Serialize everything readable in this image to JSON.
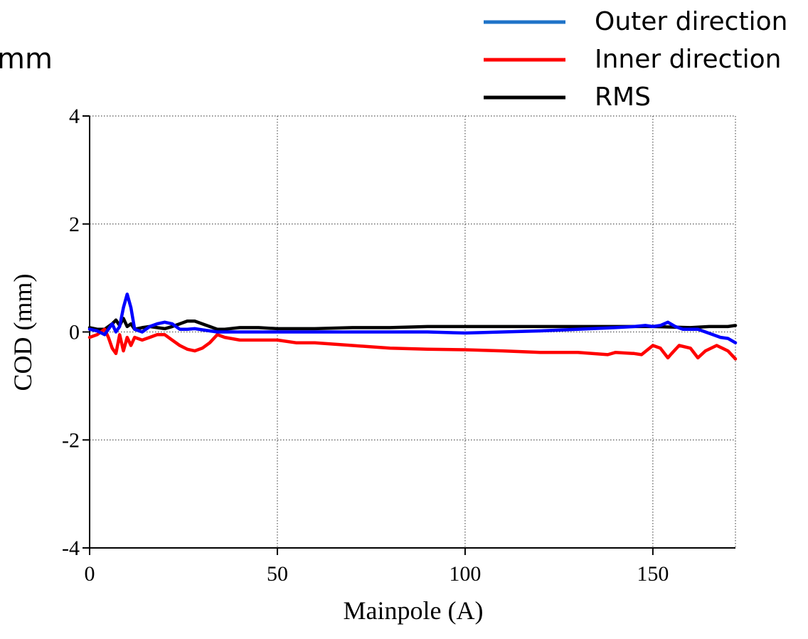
{
  "slide": {
    "partial_text": "mm"
  },
  "legend": {
    "placement": "top-right",
    "items": [
      {
        "label": "Outer direction",
        "color": "#1f73c8"
      },
      {
        "label": "Inner direction",
        "color": "#ff0000"
      },
      {
        "label": "RMS",
        "color": "#000000"
      }
    ]
  },
  "chart_data": {
    "type": "line",
    "title": "",
    "xlabel": "Mainpole (A)",
    "ylabel": "COD (mm)",
    "xlim": [
      0,
      172
    ],
    "ylim": [
      -4,
      4
    ],
    "xticks": [
      0,
      50,
      100,
      150
    ],
    "yticks": [
      4,
      2,
      0,
      -2,
      -4
    ],
    "xtick_labels": [
      "0",
      "50",
      "100",
      "150"
    ],
    "ytick_labels": [
      "4",
      "2",
      "0",
      "-2",
      "-4"
    ],
    "grid": "dotted",
    "series": [
      {
        "name": "Outer direction",
        "color": "#0000ff",
        "x": [
          0,
          2,
          4,
          6,
          7,
          8,
          9,
          10,
          11,
          12,
          14,
          16,
          18,
          20,
          22,
          24,
          26,
          28,
          30,
          32,
          34,
          36,
          40,
          45,
          50,
          55,
          60,
          70,
          80,
          90,
          100,
          110,
          120,
          130,
          140,
          145,
          148,
          150,
          152,
          154,
          156,
          158,
          160,
          162,
          164,
          166,
          168,
          170,
          172
        ],
        "y": [
          0.05,
          0.02,
          -0.05,
          0.15,
          0.0,
          0.1,
          0.45,
          0.7,
          0.45,
          0.05,
          0.0,
          0.1,
          0.15,
          0.18,
          0.15,
          0.05,
          0.05,
          0.06,
          0.04,
          0.02,
          0.0,
          0.0,
          0.0,
          0.0,
          0.0,
          0.0,
          0.0,
          0.0,
          0.0,
          0.0,
          -0.02,
          0.0,
          0.02,
          0.05,
          0.08,
          0.1,
          0.12,
          0.1,
          0.12,
          0.18,
          0.1,
          0.05,
          0.05,
          0.05,
          0.0,
          -0.05,
          -0.1,
          -0.12,
          -0.2
        ]
      },
      {
        "name": "Inner direction",
        "color": "#ff0000",
        "x": [
          0,
          2,
          4,
          5,
          6,
          7,
          8,
          9,
          10,
          11,
          12,
          14,
          16,
          18,
          20,
          22,
          24,
          26,
          28,
          30,
          32,
          34,
          36,
          40,
          45,
          50,
          55,
          60,
          70,
          80,
          90,
          100,
          110,
          120,
          130,
          138,
          140,
          145,
          147,
          150,
          152,
          154,
          155,
          157,
          160,
          162,
          164,
          167,
          170,
          172
        ],
        "y": [
          -0.1,
          -0.05,
          0.05,
          -0.1,
          -0.3,
          -0.4,
          -0.05,
          -0.35,
          -0.1,
          -0.25,
          -0.1,
          -0.15,
          -0.1,
          -0.05,
          -0.05,
          -0.15,
          -0.25,
          -0.32,
          -0.35,
          -0.3,
          -0.2,
          -0.05,
          -0.1,
          -0.15,
          -0.15,
          -0.15,
          -0.2,
          -0.2,
          -0.25,
          -0.3,
          -0.32,
          -0.33,
          -0.35,
          -0.38,
          -0.38,
          -0.42,
          -0.38,
          -0.4,
          -0.42,
          -0.25,
          -0.3,
          -0.48,
          -0.4,
          -0.25,
          -0.3,
          -0.48,
          -0.35,
          -0.25,
          -0.35,
          -0.5
        ]
      },
      {
        "name": "RMS",
        "color": "#000000",
        "x": [
          0,
          2,
          4,
          6,
          7,
          8,
          9,
          10,
          11,
          12,
          14,
          16,
          18,
          20,
          22,
          24,
          26,
          28,
          30,
          32,
          34,
          36,
          40,
          45,
          50,
          55,
          60,
          70,
          80,
          90,
          100,
          110,
          120,
          130,
          140,
          150,
          160,
          165,
          170,
          172
        ],
        "y": [
          0.08,
          0.05,
          0.05,
          0.15,
          0.22,
          0.12,
          0.25,
          0.1,
          0.15,
          0.05,
          0.08,
          0.1,
          0.08,
          0.06,
          0.1,
          0.15,
          0.2,
          0.2,
          0.15,
          0.1,
          0.05,
          0.05,
          0.08,
          0.08,
          0.06,
          0.06,
          0.06,
          0.08,
          0.08,
          0.1,
          0.1,
          0.1,
          0.1,
          0.1,
          0.1,
          0.1,
          0.08,
          0.1,
          0.1,
          0.12
        ]
      }
    ]
  }
}
